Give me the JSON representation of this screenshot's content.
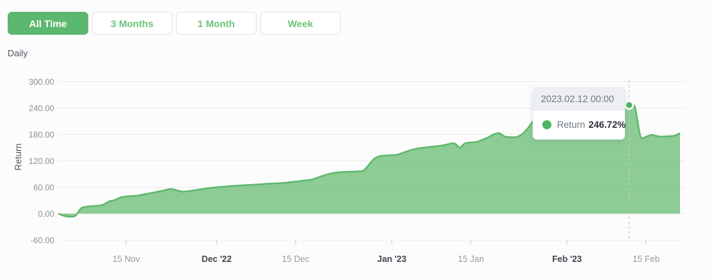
{
  "toolbar": {
    "buttons": [
      {
        "label": "All Time",
        "active": true
      },
      {
        "label": "3 Months",
        "active": false
      },
      {
        "label": "1 Month",
        "active": false
      },
      {
        "label": "Week",
        "active": false
      }
    ]
  },
  "frequency_label": "Daily",
  "tooltip": {
    "date": "2023.02.12 00:00",
    "series": "Return",
    "value": "246.72%"
  },
  "colors": {
    "accent": "#5cb86f",
    "accent_text": "#6dc27c",
    "area_line": "#5eb86b",
    "area_fill": "rgba(98,186,110,0.72)",
    "marker": "#4eb462",
    "grid": "#ececec",
    "axis_tick": "#d6d6d6",
    "cursor_line": "#c8c8c8",
    "tooltip_header_bg": "#edeff3"
  },
  "chart_data": {
    "type": "area",
    "title": "",
    "xlabel": "",
    "ylabel": "Return",
    "grid": true,
    "legend": "none (tooltip only)",
    "ylim": [
      -60,
      300
    ],
    "xlim": [
      "2022-11-03",
      "2023-02-21"
    ],
    "yticks": [
      {
        "value": 300,
        "label": "300.00"
      },
      {
        "value": 240,
        "label": "240.00"
      },
      {
        "value": 180,
        "label": "180.00"
      },
      {
        "value": 120,
        "label": "120.00"
      },
      {
        "value": 60,
        "label": "60.00"
      },
      {
        "value": 0,
        "label": "0.00"
      },
      {
        "value": -60,
        "label": "-60.00"
      }
    ],
    "xticks": [
      {
        "date": "2022-11-15",
        "label": "15 Nov",
        "bold": false
      },
      {
        "date": "2022-12-01",
        "label": "Dec '22",
        "bold": true
      },
      {
        "date": "2022-12-15",
        "label": "15 Dec",
        "bold": false
      },
      {
        "date": "2023-01-01",
        "label": "Jan '23",
        "bold": true
      },
      {
        "date": "2023-01-15",
        "label": "15 Jan",
        "bold": false
      },
      {
        "date": "2023-02-01",
        "label": "Feb '23",
        "bold": true
      },
      {
        "date": "2023-02-15",
        "label": "15 Feb",
        "bold": false
      }
    ],
    "cursor": {
      "date": "2023-02-12",
      "value": 246.72
    },
    "series": [
      {
        "name": "Return",
        "unit": "%",
        "points": [
          [
            "2022-11-03",
            0
          ],
          [
            "2022-11-04",
            -5
          ],
          [
            "2022-11-05",
            -7
          ],
          [
            "2022-11-06",
            -5
          ],
          [
            "2022-11-07",
            12
          ],
          [
            "2022-11-08",
            16
          ],
          [
            "2022-11-10",
            18
          ],
          [
            "2022-11-11",
            21
          ],
          [
            "2022-11-12",
            28
          ],
          [
            "2022-11-13",
            31
          ],
          [
            "2022-11-14",
            37
          ],
          [
            "2022-11-15",
            39
          ],
          [
            "2022-11-17",
            41
          ],
          [
            "2022-11-19",
            46
          ],
          [
            "2022-11-21",
            51
          ],
          [
            "2022-11-22",
            54
          ],
          [
            "2022-11-23",
            56
          ],
          [
            "2022-11-24",
            53
          ],
          [
            "2022-11-25",
            50
          ],
          [
            "2022-11-27",
            53
          ],
          [
            "2022-11-29",
            57
          ],
          [
            "2022-12-01",
            60
          ],
          [
            "2022-12-03",
            62
          ],
          [
            "2022-12-05",
            64
          ],
          [
            "2022-12-08",
            66
          ],
          [
            "2022-12-10",
            68
          ],
          [
            "2022-12-13",
            70
          ],
          [
            "2022-12-15",
            73
          ],
          [
            "2022-12-17",
            76
          ],
          [
            "2022-12-18",
            78
          ],
          [
            "2022-12-20",
            87
          ],
          [
            "2022-12-22",
            93
          ],
          [
            "2022-12-24",
            95
          ],
          [
            "2022-12-26",
            96
          ],
          [
            "2022-12-27",
            98
          ],
          [
            "2022-12-28",
            112
          ],
          [
            "2022-12-29",
            126
          ],
          [
            "2022-12-30",
            131
          ],
          [
            "2023-01-01",
            133
          ],
          [
            "2023-01-02",
            134
          ],
          [
            "2023-01-04",
            143
          ],
          [
            "2023-01-06",
            149
          ],
          [
            "2023-01-08",
            152
          ],
          [
            "2023-01-10",
            155
          ],
          [
            "2023-01-12",
            160
          ],
          [
            "2023-01-13",
            150
          ],
          [
            "2023-01-14",
            160
          ],
          [
            "2023-01-16",
            163
          ],
          [
            "2023-01-17",
            168
          ],
          [
            "2023-01-18",
            173
          ],
          [
            "2023-01-19",
            180
          ],
          [
            "2023-01-20",
            183
          ],
          [
            "2023-01-21",
            175
          ],
          [
            "2023-01-22",
            174
          ],
          [
            "2023-01-23",
            174
          ],
          [
            "2023-01-24",
            180
          ],
          [
            "2023-01-25",
            193
          ],
          [
            "2023-01-26",
            210
          ],
          [
            "2023-01-27",
            220
          ],
          [
            "2023-01-28",
            224
          ],
          [
            "2023-01-30",
            227
          ],
          [
            "2023-02-01",
            230
          ],
          [
            "2023-02-03",
            232
          ],
          [
            "2023-02-05",
            234
          ],
          [
            "2023-02-07",
            237
          ],
          [
            "2023-02-09",
            240
          ],
          [
            "2023-02-11",
            244
          ],
          [
            "2023-02-12",
            246.72
          ],
          [
            "2023-02-13",
            243
          ],
          [
            "2023-02-14",
            176
          ],
          [
            "2023-02-15",
            175
          ],
          [
            "2023-02-16",
            179
          ],
          [
            "2023-02-17",
            176
          ],
          [
            "2023-02-18",
            175
          ],
          [
            "2023-02-19",
            176
          ],
          [
            "2023-02-20",
            177
          ],
          [
            "2023-02-21",
            183
          ]
        ]
      }
    ]
  }
}
